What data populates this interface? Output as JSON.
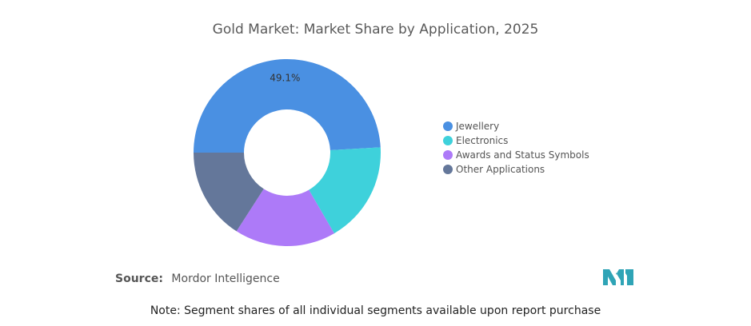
{
  "chart_data": {
    "type": "pie",
    "title": "Gold Market: Market Share by Application, 2025",
    "categories": [
      "Jewellery",
      "Electronics",
      "Awards and Status Symbols",
      "Other Applications"
    ],
    "values": [
      49.1,
      17.5,
      17.5,
      15.9
    ],
    "data_labels": [
      "49.1%",
      "",
      "",
      ""
    ],
    "colors": [
      "#4a90e2",
      "#3ed1db",
      "#ad7af8",
      "#64779a"
    ],
    "donut": true,
    "legend_position": "right"
  },
  "source": {
    "label": "Source:",
    "text": "Mordor Intelligence"
  },
  "note": "Note: Segment shares of all individual segments available upon report purchase",
  "logo": {
    "icon": "mordor-intelligence-logo",
    "color": "#2fa4b6"
  }
}
